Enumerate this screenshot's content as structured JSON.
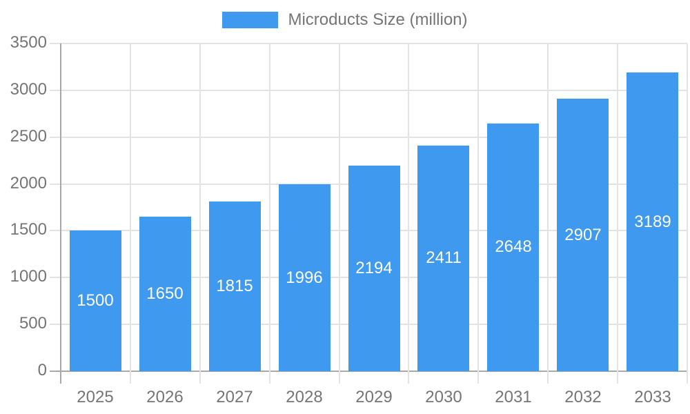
{
  "legend": {
    "label": "Microducts Size (million)",
    "swatch_color": "#3E99EF"
  },
  "chart_data": {
    "type": "bar",
    "title": "",
    "categories": [
      "2025",
      "2026",
      "2027",
      "2028",
      "2029",
      "2030",
      "2031",
      "2032",
      "2033"
    ],
    "series": [
      {
        "name": "Microducts Size (million)",
        "values": [
          1500,
          1650,
          1815,
          1996,
          2194,
          2411,
          2648,
          2907,
          3189
        ],
        "color": "#3E99EF"
      }
    ],
    "bar_labels_visible": true,
    "bar_label_position": "inside-center",
    "bar_label_color": "#ffffff",
    "ylim": [
      0,
      3500
    ],
    "yticks": [
      0,
      500,
      1000,
      1500,
      2000,
      2500,
      3000,
      3500
    ],
    "xlabel": "",
    "ylabel": "",
    "grid": true,
    "legend_position": "top-center"
  },
  "colors": {
    "bar": "#3E99EF",
    "gridline": "#e3e3e3",
    "axis_line": "#a9a9a9",
    "tick_text": "#757575",
    "background": "#ffffff"
  }
}
